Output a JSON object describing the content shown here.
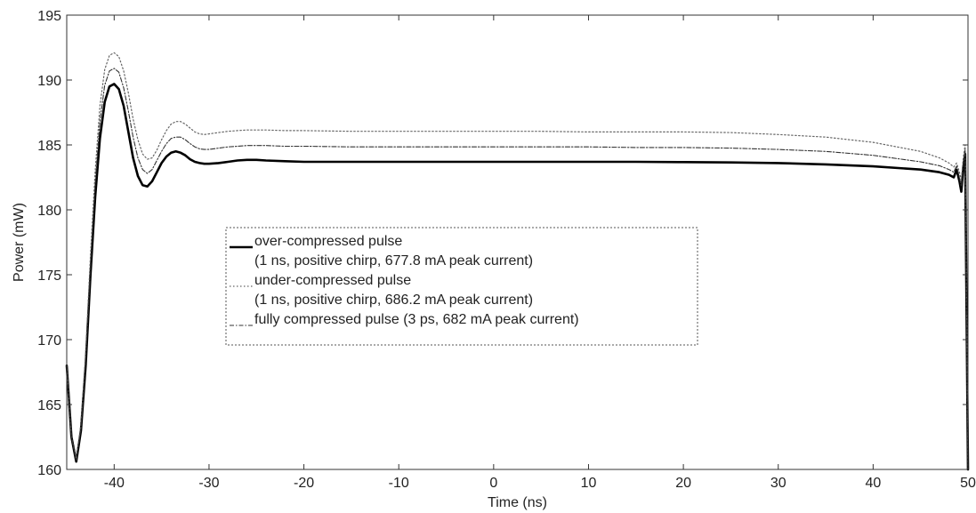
{
  "chart_data": {
    "type": "line",
    "title": "",
    "xlabel": "Time (ns)",
    "ylabel": "Power (mW)",
    "xlim": [
      -45,
      50
    ],
    "ylim": [
      160,
      195
    ],
    "xticks": [
      -40,
      -30,
      -20,
      -10,
      0,
      10,
      20,
      30,
      40,
      50
    ],
    "yticks": [
      160,
      165,
      170,
      175,
      180,
      185,
      190,
      195
    ],
    "grid": false,
    "legend_position": "center-left",
    "series": [
      {
        "name": "over-compressed pulse",
        "name_line2": "(1 ns, positive chirp, 677.8 mA peak current)",
        "style": "solid-thick",
        "color": "#000000",
        "x": [
          -45,
          -44.5,
          -44,
          -43.5,
          -43,
          -42.5,
          -42,
          -41.5,
          -41,
          -40.5,
          -40,
          -39.5,
          -39,
          -38.5,
          -38,
          -37.5,
          -37,
          -36.5,
          -36,
          -35.5,
          -35,
          -34.5,
          -34,
          -33.5,
          -33,
          -32.5,
          -32,
          -31.5,
          -31,
          -30.5,
          -30,
          -29,
          -28,
          -27,
          -26,
          -25,
          -24,
          -22,
          -20,
          -15,
          -10,
          -5,
          0,
          5,
          10,
          15,
          20,
          25,
          30,
          35,
          40,
          45,
          47,
          48,
          48.5,
          48.8,
          49.1,
          49.3,
          49.5,
          49.7,
          49.85,
          50
        ],
        "y": [
          168,
          162.5,
          160.6,
          163,
          168,
          175,
          181,
          185.5,
          188.3,
          189.5,
          189.7,
          189.3,
          188,
          186,
          184,
          182.6,
          181.9,
          181.8,
          182.2,
          182.9,
          183.6,
          184.1,
          184.4,
          184.5,
          184.4,
          184.2,
          183.9,
          183.7,
          183.6,
          183.55,
          183.55,
          183.6,
          183.7,
          183.8,
          183.85,
          183.85,
          183.8,
          183.75,
          183.7,
          183.7,
          183.7,
          183.7,
          183.7,
          183.7,
          183.7,
          183.7,
          183.68,
          183.65,
          183.6,
          183.5,
          183.35,
          183.1,
          182.9,
          182.7,
          182.5,
          183.1,
          182.2,
          181.4,
          183.3,
          184.3,
          172,
          160
        ]
      },
      {
        "name": "under-compressed pulse",
        "name_line2": "(1 ns, positive chirp, 686.2 mA peak current)",
        "style": "dotted",
        "color": "#666666",
        "x": [
          -45,
          -44.5,
          -44,
          -43.5,
          -43,
          -42.5,
          -42,
          -41.5,
          -41,
          -40.5,
          -40,
          -39.5,
          -39,
          -38.5,
          -38,
          -37.5,
          -37,
          -36.5,
          -36,
          -35.5,
          -35,
          -34.5,
          -34,
          -33.5,
          -33,
          -32.5,
          -32,
          -31.5,
          -31,
          -30.5,
          -30,
          -29,
          -28,
          -27,
          -26,
          -25,
          -24,
          -22,
          -20,
          -15,
          -10,
          -5,
          0,
          5,
          10,
          15,
          20,
          25,
          30,
          35,
          40,
          45,
          47,
          48,
          48.5,
          48.8,
          49.1,
          49.3,
          49.5,
          49.7,
          49.85,
          50
        ],
        "y": [
          168,
          162.5,
          160.8,
          163.5,
          169,
          176.5,
          183,
          188,
          190.8,
          191.9,
          192.1,
          191.8,
          190.7,
          189,
          187,
          185.4,
          184.3,
          183.9,
          184,
          184.6,
          185.4,
          186.1,
          186.6,
          186.8,
          186.8,
          186.6,
          186.3,
          186,
          185.85,
          185.8,
          185.85,
          185.95,
          186.05,
          186.1,
          186.15,
          186.15,
          186.15,
          186.1,
          186.1,
          186.05,
          186.05,
          186.05,
          186.05,
          186.05,
          186.0,
          186.0,
          186.0,
          185.95,
          185.8,
          185.6,
          185.2,
          184.5,
          184.0,
          183.6,
          183.3,
          183.6,
          182.9,
          182.3,
          184.0,
          185.0,
          173,
          160
        ]
      },
      {
        "name": "fully compressed pulse (3 ps, 682 mA peak current)",
        "name_line2": "",
        "style": "dashdot",
        "color": "#333333",
        "x": [
          -45,
          -44.5,
          -44,
          -43.5,
          -43,
          -42.5,
          -42,
          -41.5,
          -41,
          -40.5,
          -40,
          -39.5,
          -39,
          -38.5,
          -38,
          -37.5,
          -37,
          -36.5,
          -36,
          -35.5,
          -35,
          -34.5,
          -34,
          -33.5,
          -33,
          -32.5,
          -32,
          -31.5,
          -31,
          -30.5,
          -30,
          -29,
          -28,
          -27,
          -26,
          -25,
          -24,
          -22,
          -20,
          -15,
          -10,
          -5,
          0,
          5,
          10,
          15,
          20,
          25,
          30,
          35,
          40,
          45,
          47,
          48,
          48.5,
          48.8,
          49.1,
          49.3,
          49.5,
          49.7,
          49.85,
          50
        ],
        "y": [
          168,
          162.5,
          160.7,
          163.2,
          168.5,
          175.7,
          182,
          186.8,
          189.6,
          190.7,
          190.9,
          190.6,
          189.4,
          187.6,
          185.6,
          184,
          183.1,
          182.8,
          183.1,
          183.8,
          184.5,
          185.1,
          185.5,
          185.6,
          185.6,
          185.4,
          185.1,
          184.85,
          184.7,
          184.65,
          184.65,
          184.75,
          184.85,
          184.9,
          184.95,
          184.95,
          184.95,
          184.9,
          184.9,
          184.85,
          184.85,
          184.85,
          184.85,
          184.85,
          184.85,
          184.8,
          184.8,
          184.75,
          184.65,
          184.5,
          184.2,
          183.7,
          183.4,
          183.1,
          182.9,
          183.4,
          182.5,
          181.8,
          183.6,
          184.6,
          172.5,
          160
        ]
      }
    ]
  }
}
